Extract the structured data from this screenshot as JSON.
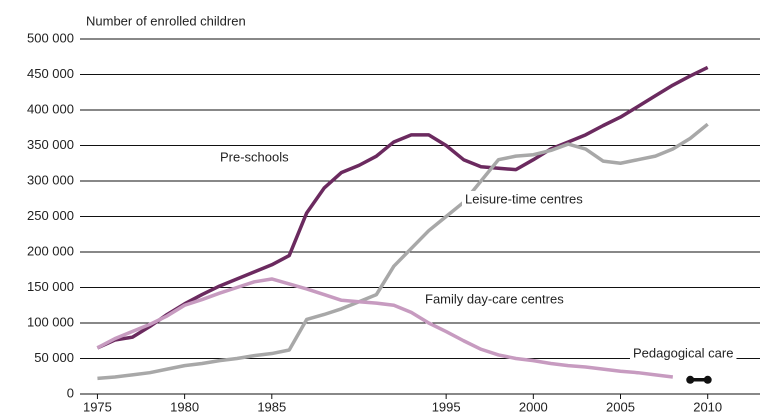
{
  "chart_data": {
    "type": "line",
    "y_axis_title": "Number of enrolled children",
    "x": [
      1975,
      1976,
      1977,
      1978,
      1979,
      1980,
      1981,
      1982,
      1983,
      1984,
      1985,
      1986,
      1987,
      1988,
      1989,
      1990,
      1991,
      1992,
      1993,
      1994,
      1995,
      1996,
      1997,
      1998,
      1999,
      2000,
      2001,
      2002,
      2003,
      2004,
      2005,
      2006,
      2007,
      2008,
      2009,
      2010
    ],
    "series": [
      {
        "name": "Pre-schools",
        "color": "#6b2a5f",
        "values": [
          65000,
          76000,
          80000,
          95000,
          112000,
          127000,
          140000,
          152000,
          162000,
          172000,
          182000,
          195000,
          255000,
          290000,
          312000,
          322000,
          335000,
          355000,
          365000,
          365000,
          350000,
          330000,
          320000,
          318000,
          316000,
          330000,
          345000,
          355000,
          365000,
          378000,
          390000,
          405000,
          420000,
          435000,
          448000,
          460000
        ]
      },
      {
        "name": "Leisure-time centres",
        "color": "#a8a8a8",
        "values": [
          22000,
          24000,
          27000,
          30000,
          35000,
          40000,
          43000,
          47000,
          50000,
          54000,
          57000,
          62000,
          105000,
          112000,
          120000,
          130000,
          140000,
          180000,
          205000,
          230000,
          250000,
          270000,
          300000,
          330000,
          335000,
          337000,
          343000,
          352000,
          345000,
          328000,
          325000,
          330000,
          335000,
          345000,
          360000,
          380000
        ]
      },
      {
        "name": "Family day-care centres",
        "color": "#c79bc0",
        "values": [
          65000,
          78000,
          88000,
          98000,
          110000,
          125000,
          133000,
          142000,
          150000,
          158000,
          162000,
          155000,
          148000,
          140000,
          132000,
          130000,
          128000,
          125000,
          115000,
          100000,
          88000,
          75000,
          63000,
          55000,
          50000,
          47000,
          43000,
          40000,
          38000,
          35000,
          32000,
          30000,
          27000,
          24000,
          null,
          null
        ]
      },
      {
        "name": "Pedagogical care",
        "color": "#111111",
        "values": [
          null,
          null,
          null,
          null,
          null,
          null,
          null,
          null,
          null,
          null,
          null,
          null,
          null,
          null,
          null,
          null,
          null,
          null,
          null,
          null,
          null,
          null,
          null,
          null,
          null,
          null,
          null,
          null,
          null,
          null,
          null,
          null,
          null,
          null,
          20000,
          20000
        ]
      }
    ],
    "xlim": [
      1974,
      2013
    ],
    "xticks": [
      1975,
      1980,
      1985,
      1995,
      2000,
      2005,
      2010
    ],
    "ylim": [
      0,
      500000
    ],
    "yticks": [
      0,
      {
        "value": 50000,
        "label": "50 000"
      },
      {
        "value": 100000,
        "label": "100 000"
      },
      {
        "value": 150000,
        "label": "150 000"
      },
      {
        "value": 200000,
        "label": "200 000"
      },
      {
        "value": 250000,
        "label": "250 000"
      },
      {
        "value": 300000,
        "label": "300 000"
      },
      {
        "value": 350000,
        "label": "350 000"
      },
      {
        "value": 400000,
        "label": "400 000"
      },
      {
        "value": 450000,
        "label": "450 000"
      },
      {
        "value": 500000,
        "label": "500 000"
      }
    ],
    "grid": true
  }
}
